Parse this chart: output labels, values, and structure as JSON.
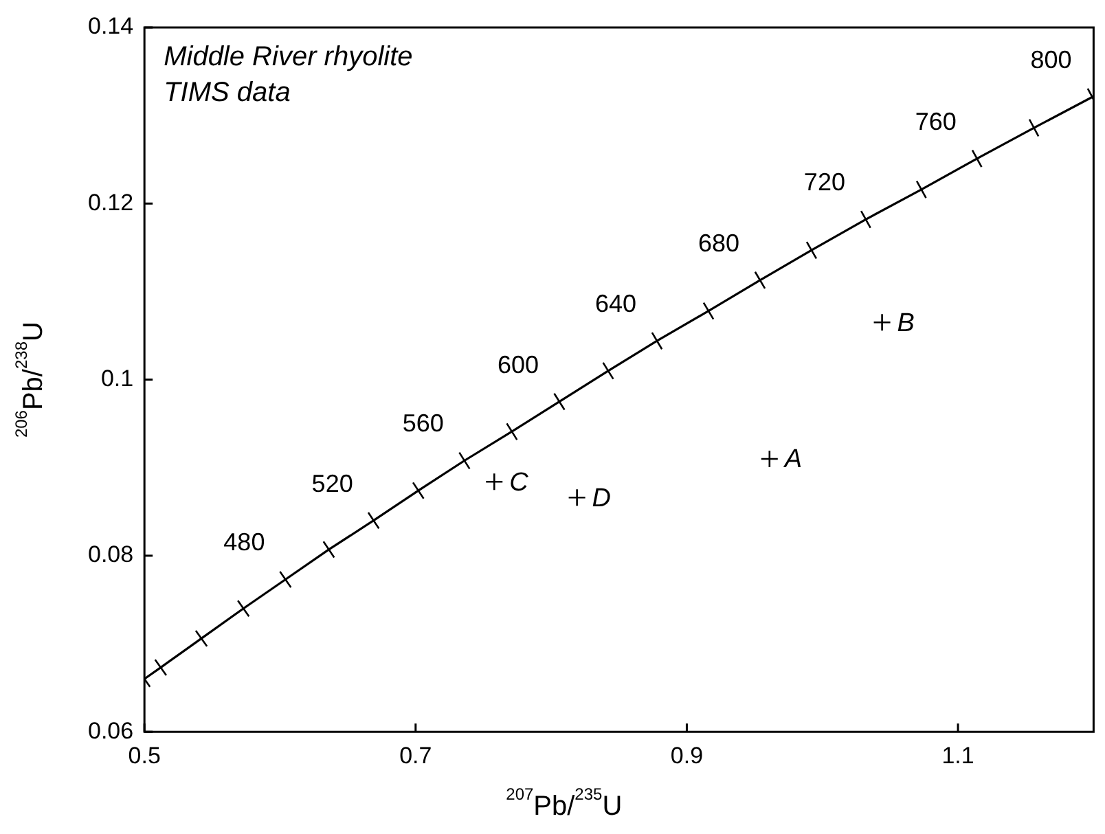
{
  "chart_data": {
    "type": "line",
    "title": "Middle River rhyolite",
    "subtitle": "TIMS data",
    "xlabel": "$^{207}$Pb/$^{235}$U",
    "ylabel": "$^{206}$Pb/$^{238}$U",
    "xlim": [
      0.5,
      1.2
    ],
    "xticks": [
      0.5,
      0.7,
      0.9,
      1.1
    ],
    "ylim": [
      0.06,
      0.14
    ],
    "yticks": [
      0.06,
      0.08,
      0.1,
      0.12,
      0.14
    ],
    "grid": false,
    "legend": false,
    "series": [
      {
        "type": "line",
        "marker": "cross",
        "color": "#000000",
        "x": [
          0.5,
          0.512,
          0.542,
          0.573,
          0.604,
          0.636,
          0.669,
          0.702,
          0.736,
          0.771,
          0.806,
          0.842,
          0.878,
          0.916,
          0.954,
          0.992,
          1.032,
          1.073,
          1.114,
          1.156,
          1.199
        ],
        "values": [
          0.066,
          0.0673,
          0.0706,
          0.074,
          0.0773,
          0.0807,
          0.084,
          0.0874,
          0.0908,
          0.0941,
          0.0975,
          0.101,
          0.1044,
          0.1078,
          0.1113,
          0.1147,
          0.1182,
          0.1216,
          0.1251,
          0.1286,
          0.1321
        ]
      },
      {
        "type": "scatter",
        "marker": "cross",
        "color": "#000000",
        "x": [
          0.961,
          1.044,
          0.758,
          0.819
        ],
        "values": [
          0.091,
          0.1065,
          0.0884,
          0.0866
        ]
      }
    ],
    "annotations": [
      {
        "text": "480",
        "x": 0.604,
        "y": 0.0773
      },
      {
        "text": "520",
        "x": 0.669,
        "y": 0.084
      },
      {
        "text": "560",
        "x": 0.736,
        "y": 0.0908
      },
      {
        "text": "600",
        "x": 0.806,
        "y": 0.0975
      },
      {
        "text": "640",
        "x": 0.878,
        "y": 0.1044
      },
      {
        "text": "680",
        "x": 0.954,
        "y": 0.1113
      },
      {
        "text": "720",
        "x": 1.032,
        "y": 0.1182
      },
      {
        "text": "760",
        "x": 1.114,
        "y": 0.1251
      },
      {
        "text": "800",
        "x": 1.199,
        "y": 0.1321
      },
      {
        "text": "A",
        "x": 0.961,
        "y": 0.091
      },
      {
        "text": "B",
        "x": 1.044,
        "y": 0.1065
      },
      {
        "text": "C",
        "x": 0.758,
        "y": 0.0884
      },
      {
        "text": "D",
        "x": 0.819,
        "y": 0.0866
      }
    ]
  }
}
